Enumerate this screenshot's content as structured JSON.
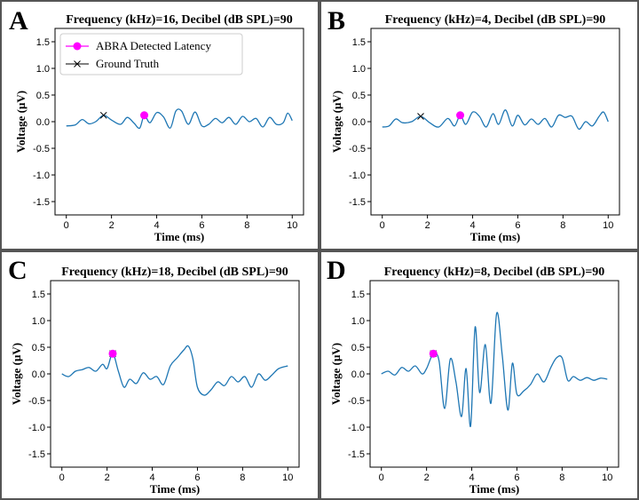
{
  "colors": {
    "waveform": "#1f77b4",
    "abra": "#ff00ff",
    "ground_truth": "#000000"
  },
  "legend": {
    "abra_label": "ABRA Detected Latency",
    "truth_label": "Ground Truth"
  },
  "chart_data": [
    {
      "panel": "A",
      "type": "line",
      "title": "Frequency (kHz)=16, Decibel (dB SPL)=90",
      "xlabel": "Time (ms)",
      "ylabel": "Voltage (μV)",
      "xlim": [
        -0.5,
        10.5
      ],
      "ylim": [
        -1.75,
        1.75
      ],
      "xticks": [
        "0",
        "2",
        "4",
        "6",
        "8",
        "10"
      ],
      "yticks": [
        "-1.5",
        "-1.0",
        "-0.5",
        "0.0",
        "0.5",
        "1.0",
        "1.5"
      ],
      "legend": true,
      "series": [
        {
          "name": "waveform",
          "x": [
            0,
            0.4,
            0.7,
            1.0,
            1.3,
            1.65,
            2.0,
            2.4,
            2.7,
            3.0,
            3.25,
            3.45,
            3.7,
            4.0,
            4.3,
            4.6,
            4.85,
            5.1,
            5.4,
            5.7,
            6.0,
            6.3,
            6.6,
            6.9,
            7.2,
            7.5,
            7.8,
            8.1,
            8.4,
            8.7,
            9.0,
            9.3,
            9.6,
            9.8,
            10.0
          ],
          "y": [
            -0.08,
            -0.06,
            0.04,
            -0.04,
            0.0,
            0.12,
            0.03,
            -0.05,
            0.08,
            -0.03,
            -0.12,
            0.12,
            -0.02,
            0.17,
            0.09,
            -0.12,
            0.2,
            0.2,
            -0.05,
            0.18,
            -0.08,
            -0.05,
            0.06,
            -0.02,
            0.08,
            -0.05,
            0.1,
            0.0,
            0.06,
            -0.1,
            0.08,
            -0.05,
            -0.02,
            0.16,
            0.02
          ]
        },
        {
          "name": "ABRA Detected Latency",
          "x": [
            3.45
          ],
          "y": [
            0.12
          ]
        },
        {
          "name": "Ground Truth",
          "x": [
            1.65
          ],
          "y": [
            0.12
          ]
        }
      ]
    },
    {
      "panel": "B",
      "type": "line",
      "title": "Frequency (kHz)=4, Decibel (dB SPL)=90",
      "xlabel": "Time (ms)",
      "ylabel": "Voltage (μV)",
      "xlim": [
        -0.5,
        10.5
      ],
      "ylim": [
        -1.75,
        1.75
      ],
      "xticks": [
        "0",
        "2",
        "4",
        "6",
        "8",
        "10"
      ],
      "yticks": [
        "-1.5",
        "-1.0",
        "-0.5",
        "0.0",
        "0.5",
        "1.0",
        "1.5"
      ],
      "legend": false,
      "series": [
        {
          "name": "waveform",
          "x": [
            0,
            0.3,
            0.6,
            0.9,
            1.3,
            1.7,
            2.1,
            2.5,
            2.9,
            3.2,
            3.45,
            3.7,
            4.0,
            4.3,
            4.6,
            4.9,
            5.15,
            5.45,
            5.75,
            6.0,
            6.3,
            6.6,
            6.9,
            7.2,
            7.5,
            7.8,
            8.1,
            8.4,
            8.7,
            9.0,
            9.3,
            9.6,
            9.8,
            10.0
          ],
          "y": [
            -0.1,
            -0.08,
            0.05,
            -0.02,
            0.0,
            0.1,
            -0.02,
            -0.1,
            0.06,
            -0.08,
            0.12,
            -0.05,
            0.18,
            0.1,
            -0.1,
            0.15,
            -0.05,
            0.22,
            -0.08,
            0.12,
            -0.06,
            0.05,
            -0.05,
            0.06,
            -0.1,
            0.12,
            0.08,
            0.1,
            -0.14,
            0.0,
            -0.08,
            0.1,
            0.18,
            0.0
          ]
        },
        {
          "name": "ABRA Detected Latency",
          "x": [
            3.45
          ],
          "y": [
            0.12
          ]
        },
        {
          "name": "Ground Truth",
          "x": [
            1.7
          ],
          "y": [
            0.1
          ]
        }
      ]
    },
    {
      "panel": "C",
      "type": "line",
      "title": "Frequency (kHz)=18, Decibel (dB SPL)=90",
      "xlabel": "Time (ms)",
      "ylabel": "Voltage (μV)",
      "xlim": [
        -0.5,
        10.5
      ],
      "ylim": [
        -1.75,
        1.75
      ],
      "xticks": [
        "0",
        "2",
        "4",
        "6",
        "8",
        "10"
      ],
      "yticks": [
        "-1.5",
        "-1.0",
        "-0.5",
        "0.0",
        "0.5",
        "1.0",
        "1.5"
      ],
      "legend": false,
      "series": [
        {
          "name": "waveform",
          "x": [
            0,
            0.3,
            0.6,
            0.9,
            1.2,
            1.5,
            1.8,
            2.0,
            2.25,
            2.5,
            2.75,
            3.0,
            3.3,
            3.6,
            3.9,
            4.2,
            4.5,
            4.8,
            5.1,
            5.4,
            5.6,
            5.8,
            6.0,
            6.3,
            6.6,
            6.9,
            7.2,
            7.5,
            7.8,
            8.1,
            8.4,
            8.7,
            9.0,
            9.3,
            9.6,
            10.0
          ],
          "y": [
            0.0,
            -0.05,
            0.05,
            0.08,
            0.12,
            0.05,
            0.18,
            0.1,
            0.38,
            0.05,
            -0.25,
            -0.1,
            -0.18,
            0.02,
            -0.1,
            -0.05,
            -0.2,
            0.15,
            0.3,
            0.45,
            0.52,
            0.28,
            -0.25,
            -0.4,
            -0.3,
            -0.15,
            -0.22,
            -0.05,
            -0.15,
            -0.05,
            -0.25,
            0.0,
            -0.12,
            -0.02,
            0.1,
            0.15
          ]
        },
        {
          "name": "ABRA Detected Latency",
          "x": [
            2.25
          ],
          "y": [
            0.38
          ]
        },
        {
          "name": "Ground Truth",
          "x": [
            2.25
          ],
          "y": [
            0.38
          ]
        }
      ]
    },
    {
      "panel": "D",
      "type": "line",
      "title": "Frequency (kHz)=8, Decibel (dB SPL)=90",
      "xlabel": "Time (ms)",
      "ylabel": "Voltage (μV)",
      "xlim": [
        -0.5,
        10.5
      ],
      "ylim": [
        -1.75,
        1.75
      ],
      "xticks": [
        "0",
        "2",
        "4",
        "6",
        "8",
        "10"
      ],
      "yticks": [
        "-1.5",
        "-1.0",
        "-0.5",
        "0.0",
        "0.5",
        "1.0",
        "1.5"
      ],
      "legend": false,
      "series": [
        {
          "name": "waveform",
          "x": [
            0,
            0.3,
            0.6,
            0.9,
            1.2,
            1.5,
            1.8,
            2.0,
            2.3,
            2.55,
            2.8,
            3.05,
            3.3,
            3.55,
            3.75,
            3.95,
            4.15,
            4.35,
            4.6,
            4.85,
            5.1,
            5.35,
            5.6,
            5.8,
            6.0,
            6.3,
            6.6,
            6.9,
            7.2,
            7.5,
            7.75,
            8.0,
            8.25,
            8.5,
            8.8,
            9.1,
            9.4,
            9.7,
            10.0
          ],
          "y": [
            0.0,
            0.05,
            -0.02,
            0.12,
            0.05,
            0.15,
            0.0,
            0.1,
            0.38,
            0.25,
            -0.65,
            0.28,
            -0.15,
            -0.8,
            0.1,
            -0.98,
            0.88,
            -0.35,
            0.55,
            -0.55,
            1.13,
            0.35,
            -0.68,
            0.2,
            -0.38,
            -0.32,
            -0.2,
            0.0,
            -0.15,
            0.12,
            0.3,
            0.3,
            -0.12,
            -0.05,
            -0.12,
            -0.07,
            -0.12,
            -0.08,
            -0.1
          ]
        },
        {
          "name": "ABRA Detected Latency",
          "x": [
            2.3
          ],
          "y": [
            0.38
          ]
        },
        {
          "name": "Ground Truth",
          "x": [
            2.3
          ],
          "y": [
            0.38
          ]
        }
      ]
    }
  ]
}
